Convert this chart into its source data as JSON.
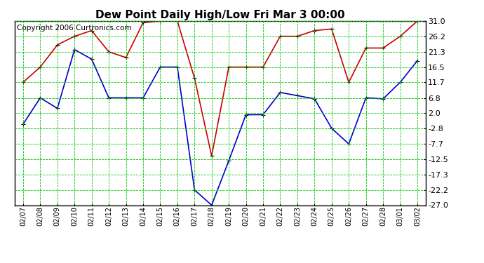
{
  "title": "Dew Point Daily High/Low Fri Mar 3 00:00",
  "copyright": "Copyright 2006 Curtronics.com",
  "x_labels": [
    "02/07",
    "02/08",
    "02/09",
    "02/10",
    "02/11",
    "02/12",
    "02/13",
    "02/14",
    "02/15",
    "02/16",
    "02/17",
    "02/18",
    "02/19",
    "02/20",
    "02/21",
    "02/22",
    "02/23",
    "02/24",
    "02/25",
    "02/26",
    "02/27",
    "02/28",
    "03/01",
    "03/02"
  ],
  "high_values": [
    11.7,
    16.5,
    23.5,
    26.2,
    28.0,
    21.3,
    19.5,
    30.5,
    31.0,
    31.0,
    13.0,
    -11.5,
    16.5,
    16.5,
    16.5,
    26.2,
    26.2,
    28.0,
    28.5,
    11.7,
    22.5,
    22.5,
    26.2,
    31.0
  ],
  "low_values": [
    -1.5,
    6.8,
    3.5,
    22.0,
    19.0,
    6.8,
    6.8,
    6.8,
    16.5,
    16.5,
    -22.2,
    -27.0,
    -13.0,
    1.5,
    1.5,
    8.5,
    7.5,
    6.5,
    -2.8,
    -7.7,
    6.8,
    6.5,
    11.7,
    18.5
  ],
  "y_ticks": [
    31.0,
    26.2,
    21.3,
    16.5,
    11.7,
    6.8,
    2.0,
    -2.8,
    -7.7,
    -12.5,
    -17.3,
    -22.2,
    -27.0
  ],
  "y_min": -27.0,
  "y_max": 31.0,
  "high_color": "#cc0000",
  "low_color": "#0000cc",
  "background_color": "#ffffff",
  "plot_bg_color": "#ffffff",
  "grid_color": "#00cc00",
  "title_fontsize": 11,
  "copyright_fontsize": 7.5
}
